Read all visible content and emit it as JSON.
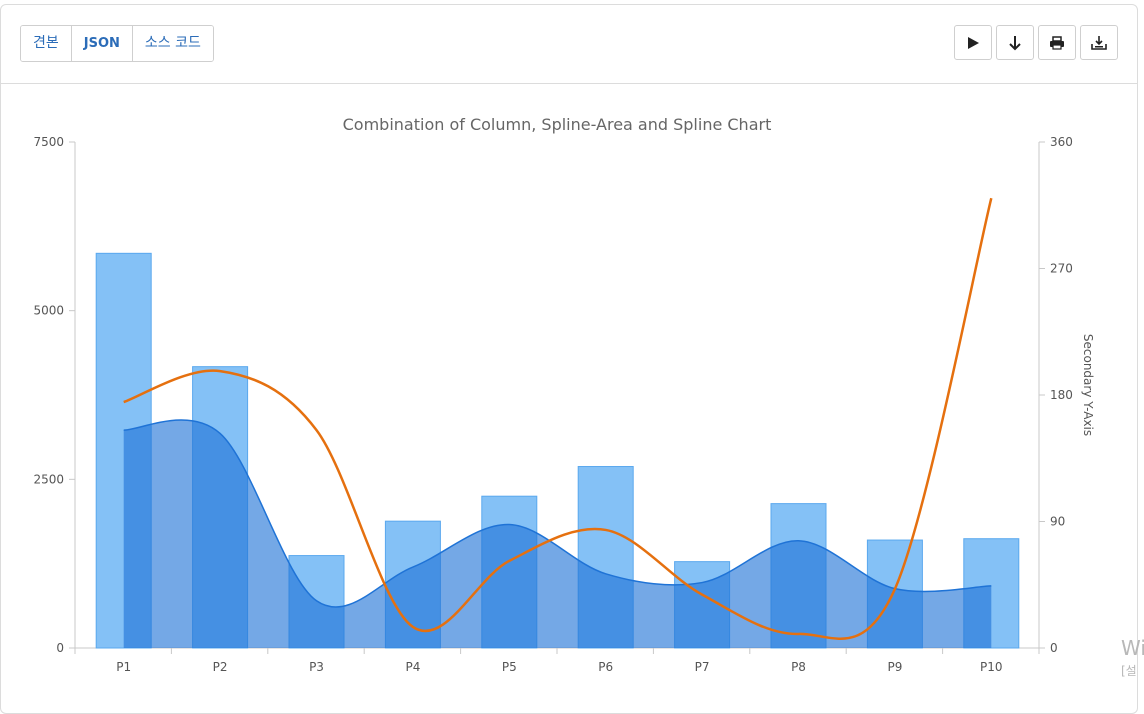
{
  "toolbar": {
    "tabs": [
      {
        "label": "견본"
      },
      {
        "label": "JSON"
      },
      {
        "label": "소스 코드"
      }
    ],
    "tools": [
      {
        "icon": "play-icon"
      },
      {
        "icon": "download-arrow-icon"
      },
      {
        "icon": "print-icon"
      },
      {
        "icon": "save-icon"
      }
    ]
  },
  "watermark": {
    "line1": "Wi",
    "line2": "[설"
  },
  "chart_data": {
    "type": "bar",
    "title": "Combination of Column, Spline-Area and Spline Chart",
    "categories": [
      "P1",
      "P2",
      "P3",
      "P4",
      "P5",
      "P6",
      "P7",
      "P8",
      "P9",
      "P10"
    ],
    "ylim": [
      0,
      7500
    ],
    "y_ticks": [
      "0",
      "2500",
      "5000",
      "7500"
    ],
    "y2label": "Secondary Y-Axis",
    "y2lim": [
      0,
      360
    ],
    "y2_ticks": [
      "0",
      "90",
      "180",
      "270",
      "360"
    ],
    "series": [
      {
        "type": "column",
        "axis": "primary",
        "color": "#7dbef5",
        "values": [
          5850,
          4170,
          1370,
          1880,
          2250,
          2690,
          1280,
          2140,
          1600,
          1620
        ]
      },
      {
        "type": "spline-area",
        "axis": "primary",
        "color": "#1f73d6",
        "values": [
          3230,
          3180,
          700,
          1200,
          1830,
          1100,
          970,
          1590,
          880,
          920
        ]
      },
      {
        "type": "spline",
        "axis": "secondary",
        "color": "#e5700f",
        "values": [
          175,
          197,
          155,
          15,
          62,
          84,
          38,
          10,
          42,
          320
        ]
      }
    ],
    "grid": false,
    "legend": "none"
  }
}
